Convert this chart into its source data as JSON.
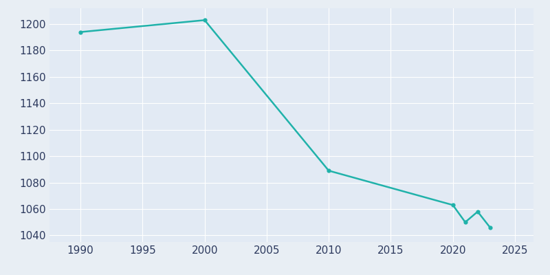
{
  "years": [
    1990,
    2000,
    2010,
    2020,
    2021,
    2022,
    2023
  ],
  "population": [
    1194,
    1203,
    1089,
    1063,
    1050,
    1058,
    1046
  ],
  "line_color": "#20B2AA",
  "marker_color": "#20B2AA",
  "background_color": "#E8EEF4",
  "plot_bg_color": "#E2EAF4",
  "grid_color": "#FFFFFF",
  "tick_label_color": "#2D3A5E",
  "xlim": [
    1987.5,
    2026.5
  ],
  "ylim": [
    1035,
    1212
  ],
  "xticks": [
    1990,
    1995,
    2000,
    2005,
    2010,
    2015,
    2020,
    2025
  ],
  "yticks": [
    1040,
    1060,
    1080,
    1100,
    1120,
    1140,
    1160,
    1180,
    1200
  ],
  "line_width": 1.8,
  "marker_size": 4.5,
  "tick_labelsize": 11
}
